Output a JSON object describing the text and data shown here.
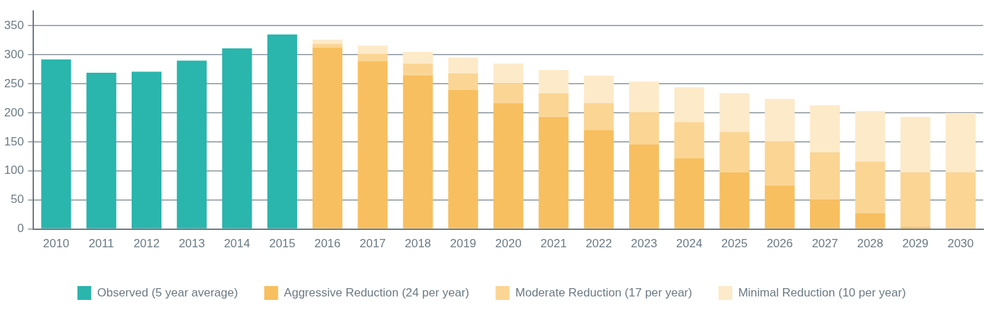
{
  "chart_data": {
    "type": "bar",
    "stacked": true,
    "categories": [
      "2010",
      "2011",
      "2012",
      "2013",
      "2014",
      "2015",
      "2016",
      "2017",
      "2018",
      "2019",
      "2020",
      "2021",
      "2022",
      "2023",
      "2024",
      "2025",
      "2026",
      "2027",
      "2028",
      "2029",
      "2030"
    ],
    "series": [
      {
        "name": "Observed (5 year average)",
        "color": "#2ab5ad",
        "values": [
          292,
          269,
          271,
          290,
          311,
          335,
          null,
          null,
          null,
          null,
          null,
          null,
          null,
          null,
          null,
          null,
          null,
          null,
          null,
          null,
          null
        ]
      },
      {
        "name": "Aggressive Reduction (24 per year)",
        "color": "#f7bf5f",
        "values": [
          null,
          null,
          null,
          null,
          null,
          null,
          312,
          289,
          265,
          240,
          217,
          193,
          170,
          146,
          122,
          98,
          75,
          51,
          27,
          4,
          0
        ]
      },
      {
        "name": "Moderate Reduction (17 per year)",
        "color": "#fbd594",
        "values": [
          null,
          null,
          null,
          null,
          null,
          null,
          7,
          13,
          20,
          28,
          34,
          41,
          47,
          55,
          62,
          69,
          75,
          81,
          89,
          94,
          98
        ]
      },
      {
        "name": "Minimal Reduction (10 per year)",
        "color": "#fdeac9",
        "values": [
          null,
          null,
          null,
          null,
          null,
          null,
          7,
          14,
          20,
          27,
          34,
          40,
          47,
          53,
          60,
          67,
          74,
          81,
          87,
          95,
          102
        ]
      }
    ],
    "ylim": [
      0,
      375
    ],
    "yticks": [
      0,
      50,
      100,
      150,
      200,
      250,
      300,
      350
    ],
    "grid": "y",
    "legend": "bottom"
  }
}
